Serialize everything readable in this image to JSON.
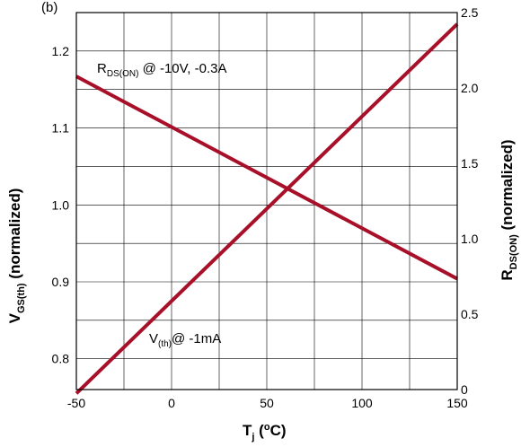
{
  "chart_data": {
    "type": "line",
    "x_axis": {
      "label": {
        "main": "T",
        "sub": "j",
        "rest_open": " (",
        "sup": "o",
        "rest_close": "C)"
      },
      "range": [
        -50,
        150
      ],
      "ticks": [
        -50,
        0,
        50,
        100,
        150
      ],
      "tick_labels": [
        "-50",
        "0",
        "50",
        "100",
        "150"
      ],
      "gridlines": [
        -50,
        -25,
        0,
        25,
        50,
        75,
        100,
        125,
        150
      ]
    },
    "y_axis_left": {
      "label": {
        "main": "V",
        "sub": "GS(th)",
        "rest": " (normalized)"
      },
      "range": [
        0.76,
        1.25
      ],
      "ticks": [
        0.8,
        0.9,
        1.0,
        1.1,
        1.2
      ],
      "tick_labels": [
        "0.8",
        "0.9",
        "1.0",
        "1.1",
        "1.2"
      ],
      "gridlines": [
        0.8,
        0.85,
        0.9,
        0.95,
        1.0,
        1.05,
        1.1,
        1.15,
        1.2,
        1.25
      ]
    },
    "y_axis_right": {
      "label": {
        "main": "R",
        "sub": "DS(ON)",
        "rest": " (normalized)"
      },
      "range": [
        0,
        2.5
      ],
      "ticks": [
        0,
        0.5,
        1.0,
        1.5,
        2.0,
        2.5
      ],
      "tick_labels": [
        "0",
        "0.5",
        "1.0",
        "1.5",
        "2.0",
        "2.5"
      ]
    },
    "top_left_label": "(b)",
    "grid": true,
    "line_color": "#a8102a",
    "series": [
      {
        "axis": "left",
        "label": {
          "main": "V",
          "sub": "(th)",
          "rest": "@ -1mA"
        },
        "x": [
          -50,
          150
        ],
        "y": [
          0.755,
          1.235
        ]
      },
      {
        "axis": "left",
        "label": {
          "main": "R",
          "sub": "DS(ON)",
          "rest": " @ -10V, -0.3A"
        },
        "x": [
          -50,
          150
        ],
        "y": [
          1.167,
          0.904
        ]
      }
    ]
  }
}
